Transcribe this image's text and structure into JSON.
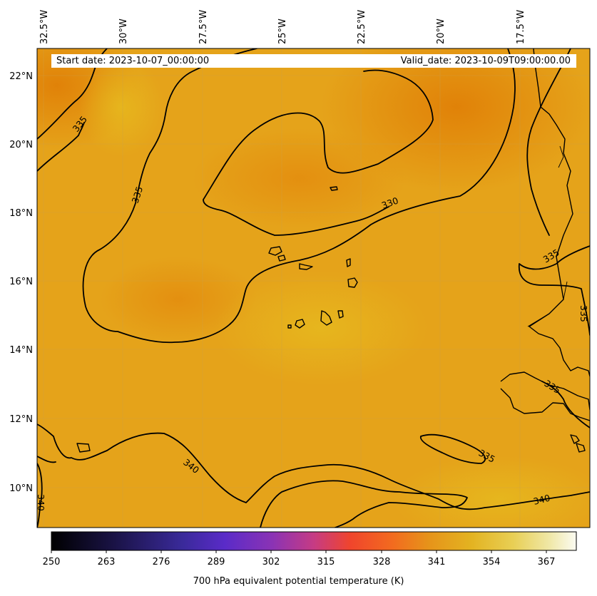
{
  "header": {
    "start_label": "Start date: 2023-10-07_00:00:00",
    "valid_label": "Valid_date: 2023-10-09T09:00:00.00"
  },
  "map": {
    "variable": "700 hPa equivalent potential temperature",
    "region": "Eastern tropical North Atlantic / West Africa",
    "longitude_labels": [
      "32.5°W",
      "30°W",
      "27.5°W",
      "25°W",
      "22.5°W",
      "20°W",
      "17.5°W"
    ],
    "latitude_labels": [
      "22°N",
      "20°N",
      "18°N",
      "16°N",
      "14°N",
      "12°N",
      "10°N"
    ],
    "contour_labels": [
      "335",
      "335",
      "330",
      "335",
      "335",
      "335",
      "340",
      "340",
      "340",
      "335"
    ],
    "field_colors": {
      "dominant": "#e6a21a",
      "warm": "#e3b21d",
      "cool": "#e07d05"
    }
  },
  "colorbar": {
    "title": "700 hPa equivalent potential temperature (K)",
    "ticks": [
      "250",
      "263",
      "276",
      "289",
      "302",
      "315",
      "328",
      "341",
      "354",
      "367"
    ],
    "range": [
      250,
      374
    ],
    "colormap": "CMRmap"
  }
}
